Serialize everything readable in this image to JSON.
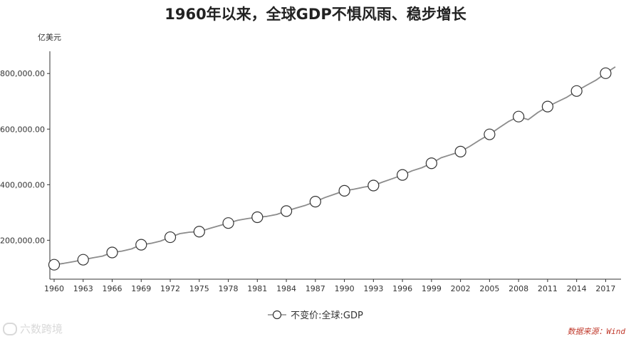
{
  "page": {
    "title": "1960年以来，全球GDP不惧风雨、稳步增长",
    "y_unit": "亿美元",
    "source": "数据来源：Wind",
    "watermark": "六数跨境"
  },
  "colors": {
    "line": "#8c8c8c",
    "marker_fill": "#ffffff",
    "marker_stroke": "#333333",
    "axis": "#333333"
  },
  "chart_data": {
    "type": "line",
    "title": "1960年以来，全球GDP不惧风雨、稳步增长",
    "ylabel": "亿美元",
    "xlabel": "",
    "x_ticks": [
      "1960",
      "1963",
      "1966",
      "1969",
      "1972",
      "1975",
      "1978",
      "1981",
      "1984",
      "1987",
      "1990",
      "1993",
      "1996",
      "1999",
      "2002",
      "2005",
      "2008",
      "2011",
      "2014",
      "2017"
    ],
    "y_ticks": [
      "200,000.00",
      "400,000.00",
      "600,000.00",
      "800,000.00"
    ],
    "y_tick_values": [
      200000,
      400000,
      600000,
      800000
    ],
    "ylim": [
      60000,
      880000
    ],
    "xlim": [
      1960,
      2018
    ],
    "grid": false,
    "legend_position": "bottom",
    "series": [
      {
        "name": "不变价:全球:GDP",
        "x": [
          1960,
          1961,
          1962,
          1963,
          1964,
          1965,
          1966,
          1967,
          1968,
          1969,
          1970,
          1971,
          1972,
          1973,
          1974,
          1975,
          1976,
          1977,
          1978,
          1979,
          1980,
          1981,
          1982,
          1983,
          1984,
          1985,
          1986,
          1987,
          1988,
          1989,
          1990,
          1991,
          1992,
          1993,
          1994,
          1995,
          1996,
          1997,
          1998,
          1999,
          2000,
          2001,
          2002,
          2003,
          2004,
          2005,
          2006,
          2007,
          2008,
          2009,
          2010,
          2011,
          2012,
          2013,
          2014,
          2015,
          2016,
          2017,
          2018
        ],
        "values": [
          112000,
          117000,
          123000,
          130000,
          137000,
          143000,
          156000,
          161000,
          169000,
          184000,
          189000,
          197000,
          211000,
          224000,
          229000,
          231000,
          242000,
          252000,
          262000,
          272000,
          278000,
          283000,
          286000,
          293000,
          305000,
          316000,
          326000,
          339000,
          354000,
          366000,
          378000,
          384000,
          391000,
          397000,
          410000,
          422000,
          435000,
          450000,
          461000,
          477000,
          497000,
          508000,
          519000,
          539000,
          561000,
          581000,
          605000,
          628000,
          645000,
          634000,
          660000,
          681000,
          698000,
          715000,
          737000,
          757000,
          776000,
          801000,
          824000
        ],
        "marker_years": [
          1960,
          1963,
          1966,
          1969,
          1972,
          1975,
          1978,
          1981,
          1984,
          1987,
          1990,
          1993,
          1996,
          1999,
          2002,
          2005,
          2008,
          2011,
          2014,
          2017
        ]
      }
    ]
  }
}
